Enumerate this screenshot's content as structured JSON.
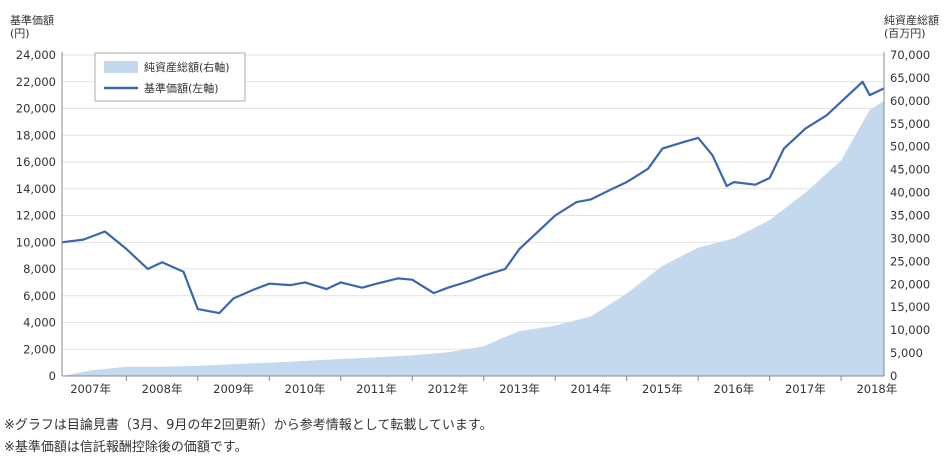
{
  "chart_data": {
    "type": "area+line",
    "left_axis_title": [
      "基準価額",
      "(円)"
    ],
    "right_axis_title": [
      "純資産総額",
      "(百万円)"
    ],
    "left_ticks": [
      "0",
      "2,000",
      "4,000",
      "6,000",
      "8,000",
      "10,000",
      "12,000",
      "14,000",
      "16,000",
      "18,000",
      "20,000",
      "22,000",
      "24,000"
    ],
    "right_ticks": [
      "0",
      "5,000",
      "10,000",
      "15,000",
      "20,000",
      "25,000",
      "30,000",
      "35,000",
      "40,000",
      "45,000",
      "50,000",
      "55,000",
      "60,000",
      "65,000",
      "70,000"
    ],
    "x_labels": [
      "2007年",
      "2008年",
      "2009年",
      "2010年",
      "2011年",
      "2012年",
      "2013年",
      "2014年",
      "2015年",
      "2016年",
      "2017年",
      "2018年"
    ],
    "ylim_left": [
      0,
      24000
    ],
    "ylim_right": [
      0,
      70000
    ],
    "xlim": [
      2006.6,
      2018.1
    ],
    "grid": true,
    "legend_position": "top-left",
    "series": [
      {
        "name": "純資産総額(右軸)",
        "axis": "right",
        "kind": "area",
        "color": "#c4d8ee",
        "x": [
          2006.6,
          2007.0,
          2007.5,
          2008.0,
          2008.5,
          2009.0,
          2009.5,
          2010.0,
          2010.5,
          2011.0,
          2011.5,
          2012.0,
          2012.5,
          2012.8,
          2013.0,
          2013.5,
          2014.0,
          2014.5,
          2015.0,
          2015.5,
          2016.0,
          2016.5,
          2017.0,
          2017.5,
          2017.9,
          2018.1
        ],
        "values": [
          0,
          1200,
          2000,
          2000,
          2200,
          2600,
          2900,
          3300,
          3700,
          4100,
          4500,
          5200,
          6500,
          8500,
          9800,
          11000,
          13000,
          18000,
          24000,
          28000,
          30000,
          34000,
          40000,
          47000,
          58000,
          60000
        ]
      },
      {
        "name": "基準価額(左軸)",
        "axis": "left",
        "kind": "line",
        "color": "#3a66b0",
        "x": [
          2006.6,
          2006.9,
          2007.2,
          2007.5,
          2007.8,
          2008.0,
          2008.3,
          2008.5,
          2008.8,
          2009.0,
          2009.3,
          2009.5,
          2009.8,
          2010.0,
          2010.3,
          2010.5,
          2010.8,
          2011.0,
          2011.3,
          2011.5,
          2011.8,
          2012.0,
          2012.3,
          2012.5,
          2012.8,
          2013.0,
          2013.3,
          2013.5,
          2013.8,
          2014.0,
          2014.3,
          2014.5,
          2014.8,
          2015.0,
          2015.3,
          2015.5,
          2015.7,
          2015.9,
          2016.0,
          2016.3,
          2016.5,
          2016.7,
          2016.9,
          2017.0,
          2017.3,
          2017.5,
          2017.8,
          2017.9,
          2018.1
        ],
        "values": [
          10000,
          10200,
          10800,
          9500,
          8000,
          8500,
          7800,
          5000,
          4700,
          5800,
          6500,
          6900,
          6800,
          7000,
          6500,
          7000,
          6600,
          6900,
          7300,
          7200,
          6200,
          6600,
          7100,
          7500,
          8000,
          9500,
          11000,
          12000,
          13000,
          13200,
          14000,
          14500,
          15500,
          17000,
          17500,
          17800,
          16500,
          14200,
          14500,
          14300,
          14800,
          17000,
          18000,
          18500,
          19500,
          20500,
          22000,
          21000,
          21500
        ]
      }
    ]
  },
  "notes": [
    "※グラフは目論見書（3月、9月の年2回更新）から参考情報として転載しています。",
    "※基準価額は信託報酬控除後の価額です。"
  ]
}
